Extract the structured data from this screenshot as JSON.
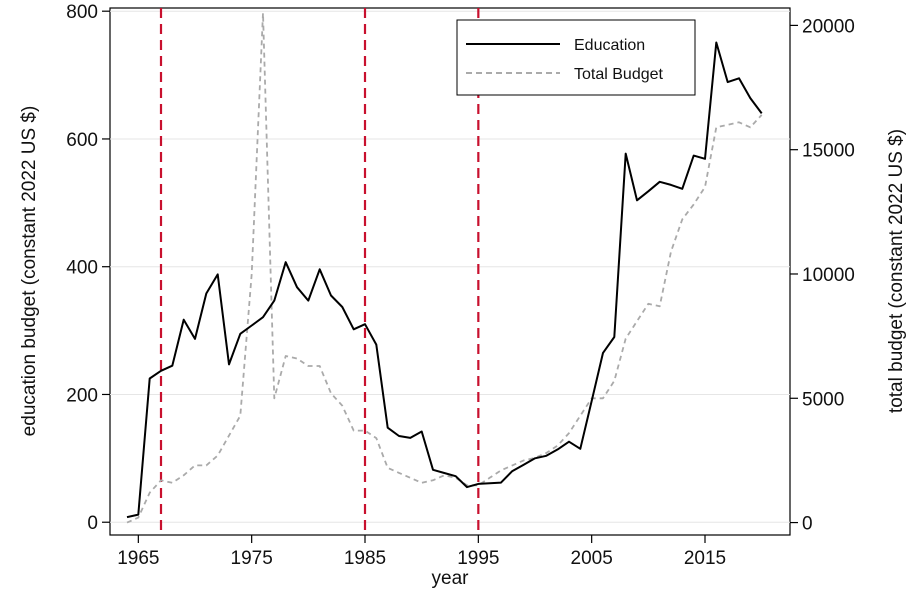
{
  "chart_data": {
    "type": "line",
    "title": "",
    "xlabel": "year",
    "ylabel": "education budget (constant 2022 US $)",
    "y2label": "total budget (constant 2022 US $)",
    "xlim": [
      1962.5,
      2022.5
    ],
    "ylim": [
      -20,
      805
    ],
    "y2lim": [
      -500,
      20700
    ],
    "x_ticks": [
      1965,
      1975,
      1985,
      1995,
      2005,
      2015
    ],
    "y_ticks": [
      0,
      200,
      400,
      600,
      800
    ],
    "y2_ticks": [
      0,
      5000,
      10000,
      15000,
      20000
    ],
    "grid": "horizontal",
    "legend_position": "top-right",
    "vlines": [
      1967,
      1985,
      1995
    ],
    "vline_color": "#c8102e",
    "series": [
      {
        "name": "Education",
        "axis": "left",
        "color": "#000000",
        "style": "solid",
        "x": [
          1964,
          1965,
          1966,
          1967,
          1968,
          1969,
          1970,
          1971,
          1972,
          1973,
          1974,
          1975,
          1976,
          1977,
          1978,
          1979,
          1980,
          1981,
          1982,
          1983,
          1984,
          1985,
          1986,
          1987,
          1988,
          1989,
          1990,
          1991,
          1992,
          1993,
          1994,
          1995,
          1996,
          1997,
          1998,
          1999,
          2000,
          2001,
          2002,
          2003,
          2004,
          2005,
          2006,
          2007,
          2008,
          2009,
          2010,
          2011,
          2012,
          2013,
          2014,
          2015,
          2016,
          2017,
          2018,
          2019,
          2020
        ],
        "values": [
          8,
          12,
          225,
          237,
          245,
          317,
          287,
          358,
          388,
          247,
          295,
          308,
          321,
          347,
          407,
          368,
          347,
          396,
          355,
          337,
          302,
          310,
          278,
          148,
          135,
          132,
          142,
          82,
          77,
          72,
          55,
          60,
          61,
          62,
          80,
          90,
          100,
          104,
          114,
          126,
          115,
          190,
          265,
          290,
          577,
          504,
          518,
          533,
          528,
          522,
          574,
          569,
          751,
          689,
          695,
          664,
          640
        ]
      },
      {
        "name": "Total Budget",
        "axis": "right",
        "color": "#aaaaaa",
        "style": "dashed",
        "x": [
          1964,
          1965,
          1966,
          1967,
          1968,
          1969,
          1970,
          1971,
          1972,
          1973,
          1974,
          1975,
          1976,
          1977,
          1978,
          1979,
          1980,
          1981,
          1982,
          1983,
          1984,
          1985,
          1986,
          1987,
          1988,
          1989,
          1990,
          1991,
          1992,
          1993,
          1994,
          1995,
          1996,
          1997,
          1998,
          1999,
          2000,
          2001,
          2002,
          2003,
          2004,
          2005,
          2006,
          2007,
          2008,
          2009,
          2010,
          2011,
          2012,
          2013,
          2014,
          2015,
          2016,
          2017,
          2018,
          2019,
          2020
        ],
        "values": [
          0,
          200,
          1200,
          1700,
          1600,
          1900,
          2300,
          2300,
          2700,
          3500,
          4300,
          10000,
          20500,
          5000,
          6700,
          6600,
          6300,
          6300,
          5200,
          4700,
          3700,
          3700,
          3400,
          2200,
          2000,
          1800,
          1600,
          1700,
          1900,
          1800,
          1500,
          1500,
          1800,
          2100,
          2300,
          2500,
          2600,
          2800,
          3100,
          3600,
          4300,
          5000,
          5000,
          5700,
          7400,
          8100,
          8800,
          8700,
          10900,
          12200,
          12800,
          13500,
          15900,
          16000,
          16100,
          15900,
          16400
        ]
      }
    ]
  }
}
